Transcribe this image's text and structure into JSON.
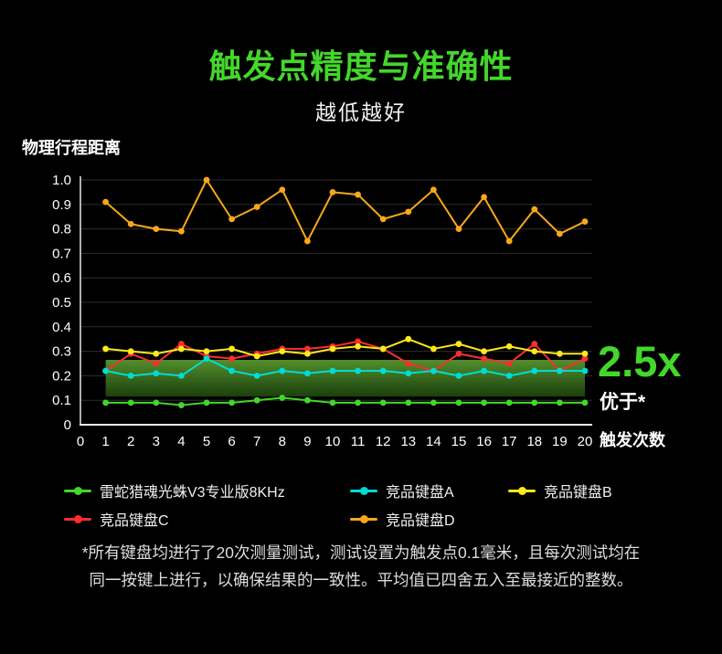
{
  "title": "触发点精度与准确性",
  "subtitle": "越低越好",
  "y_axis_title": "物理行程距离",
  "x_axis_title": "触发次数",
  "highlight": {
    "value": "2.5x",
    "better_label": "优于*"
  },
  "footnote": {
    "line1": "*所有键盘均进行了20次测量测试，测试设置为触发点0.1毫米，且每次测试均在",
    "line2": "同一按键上进行，以确保结果的一致性。平均值已四舍五入至最接近的整数。"
  },
  "colors": {
    "background": "#000000",
    "accent_green": "#44d62c",
    "grid": "#2b2f28",
    "axis": "#e8e8e8",
    "tick_text": "#ffffff",
    "band_top": "#57962e",
    "band_bottom": "#1d430e"
  },
  "chart_data": {
    "type": "line",
    "title": "触发点精度与准确性",
    "xlabel": "触发次数",
    "ylabel": "物理行程距离",
    "ylim": [
      0,
      1.0
    ],
    "grid": true,
    "legend_position": "bottom",
    "x_ticks": [
      "0",
      "1",
      "2",
      "3",
      "4",
      "5",
      "6",
      "7",
      "8",
      "9",
      "10",
      "11",
      "12",
      "13",
      "14",
      "15",
      "16",
      "17",
      "18",
      "19",
      "20"
    ],
    "y_ticks": [
      "0",
      "0.1",
      "0.2",
      "0.3",
      "0.4",
      "0.5",
      "0.6",
      "0.7",
      "0.8",
      "0.9",
      "1.0"
    ],
    "x": [
      1,
      2,
      3,
      4,
      5,
      6,
      7,
      8,
      9,
      10,
      11,
      12,
      13,
      14,
      15,
      16,
      17,
      18,
      19,
      20
    ],
    "series": [
      {
        "name": "雷蛇猎魂光蛛V3专业版8KHz",
        "color": "#44d62c",
        "values": [
          0.09,
          0.09,
          0.09,
          0.08,
          0.09,
          0.09,
          0.1,
          0.11,
          0.1,
          0.09,
          0.09,
          0.09,
          0.09,
          0.09,
          0.09,
          0.09,
          0.09,
          0.09,
          0.09,
          0.09
        ]
      },
      {
        "name": "竞品键盘A",
        "color": "#00dcd2",
        "values": [
          0.22,
          0.2,
          0.21,
          0.2,
          0.27,
          0.22,
          0.2,
          0.22,
          0.21,
          0.22,
          0.22,
          0.22,
          0.21,
          0.22,
          0.2,
          0.22,
          0.2,
          0.22,
          0.22,
          0.22
        ]
      },
      {
        "name": "竞品键盘B",
        "color": "#ffe81c",
        "values": [
          0.31,
          0.3,
          0.29,
          0.31,
          0.3,
          0.31,
          0.28,
          0.3,
          0.29,
          0.31,
          0.32,
          0.31,
          0.35,
          0.31,
          0.33,
          0.3,
          0.32,
          0.3,
          0.29,
          0.29
        ]
      },
      {
        "name": "竞品键盘C",
        "color": "#ff2d2d",
        "values": [
          0.22,
          0.29,
          0.25,
          0.33,
          0.28,
          0.27,
          0.29,
          0.31,
          0.31,
          0.32,
          0.34,
          0.31,
          0.25,
          0.22,
          0.29,
          0.27,
          0.25,
          0.33,
          0.22,
          0.27
        ]
      },
      {
        "name": "竞品键盘D",
        "color": "#f7a81b",
        "values": [
          0.91,
          0.82,
          0.8,
          0.79,
          1.0,
          0.84,
          0.89,
          0.96,
          0.75,
          0.95,
          0.94,
          0.84,
          0.87,
          0.96,
          0.8,
          0.93,
          0.75,
          0.88,
          0.78,
          0.83
        ]
      }
    ],
    "band": {
      "x_start": 1,
      "x_end": 20,
      "top": 0.265,
      "bottom": 0.115
    }
  }
}
